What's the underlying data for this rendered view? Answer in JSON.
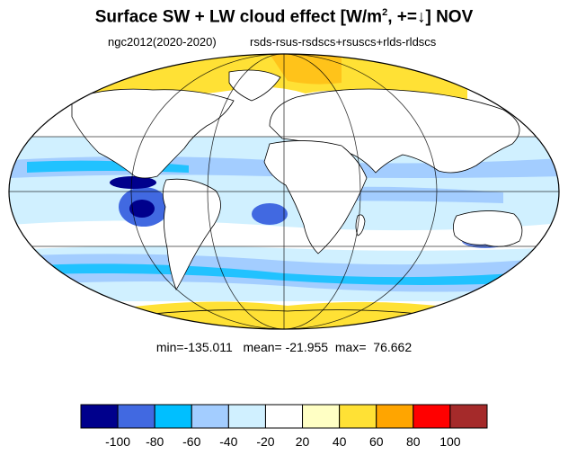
{
  "title": {
    "main": "Surface SW + LW cloud effect [W/m",
    "superscript": "2",
    "suffix": ", +=↓]  NOV"
  },
  "subtitle": {
    "left": "ngc2012(2020-2020)",
    "right": "rsds-rsus-rsdscs+rsuscs+rlds-rldscs"
  },
  "stats": {
    "min_label": "min=",
    "min": "-135.011",
    "mean_label": "mean=",
    "mean": "-21.955",
    "max_label": "max=",
    "max": "76.662"
  },
  "colorbar": {
    "colors": [
      "#00008c",
      "#4169e1",
      "#00bfff",
      "#a3cdff",
      "#d0f0ff",
      "#ffffff",
      "#ffffc4",
      "#ffe135",
      "#ffa500",
      "#ff0000",
      "#a52a2a"
    ],
    "labels": [
      "-100",
      "-80",
      "-60",
      "-40",
      "-20",
      "20",
      "40",
      "60",
      "80",
      "100"
    ]
  },
  "map": {
    "projection": "mollweide",
    "field": "surface cloud radiative effect",
    "colors": {
      "ocean_base": "#d0f0ff",
      "land_base": "#ffffff",
      "coast": "#000000",
      "grid": "#000000"
    }
  }
}
